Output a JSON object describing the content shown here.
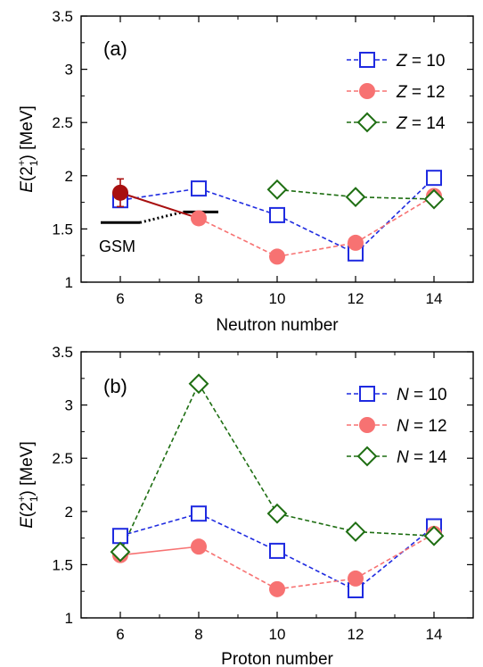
{
  "colors": {
    "blue": "#1f2be0",
    "red": "#f77272",
    "red_dark": "#c0291e",
    "dark_red": "#a80f0f",
    "green": "#1e6e12",
    "black": "#000000"
  },
  "chart_data": [
    {
      "type": "line",
      "panel_label": "(a)",
      "xlabel": "Neutron number",
      "ylabel_main": "E",
      "ylabel_rest": "(2",
      "ylabel_sup": "+",
      "ylabel_sub": "1",
      "ylabel_unit": ") [MeV]",
      "xticks": [
        "6",
        "8",
        "10",
        "12",
        "14"
      ],
      "yticks": [
        "1",
        "1.5",
        "2",
        "2.5",
        "3",
        "3.5"
      ],
      "xlim": [
        5,
        15
      ],
      "ylim": [
        1,
        3.5
      ],
      "legend_position": "top-right",
      "series": [
        {
          "name": "Z = 10",
          "legend_var": "Z",
          "legend_val": " = 10",
          "marker": "square",
          "color_key": "blue",
          "x": [
            6,
            8,
            10,
            12,
            14
          ],
          "y": [
            1.77,
            1.88,
            1.63,
            1.27,
            1.98
          ]
        },
        {
          "name": "Z = 12",
          "legend_var": "Z",
          "legend_val": " = 12",
          "marker": "circle",
          "color_key": "red",
          "x": [
            8,
            10,
            12,
            14
          ],
          "y": [
            1.6,
            1.24,
            1.37,
            1.81
          ]
        },
        {
          "name": "Z = 14",
          "legend_var": "Z",
          "legend_val": " = 14",
          "marker": "diamond",
          "color_key": "green",
          "x": [
            10,
            12,
            14
          ],
          "y": [
            1.87,
            1.8,
            1.78
          ]
        }
      ],
      "experiment": {
        "x": 6,
        "y": 1.84,
        "err": 0.13
      },
      "experiment_line": {
        "x": [
          6,
          8
        ],
        "y": [
          1.84,
          1.6
        ]
      },
      "gsm": {
        "label": "GSM",
        "level_left": {
          "x": [
            5.5,
            6.5
          ],
          "y": [
            1.56,
            1.56
          ]
        },
        "level_right": {
          "x": [
            7.6,
            8.5
          ],
          "y": [
            1.66,
            1.66
          ]
        },
        "dotted": {
          "x": [
            6.5,
            7.6
          ],
          "y": [
            1.56,
            1.66
          ]
        }
      }
    },
    {
      "type": "line",
      "panel_label": "(b)",
      "xlabel": "Proton number",
      "ylabel_main": "E",
      "ylabel_rest": "(2",
      "ylabel_sup": "+",
      "ylabel_sub": "1",
      "ylabel_unit": ") [MeV]",
      "xticks": [
        "6",
        "8",
        "10",
        "12",
        "14"
      ],
      "yticks": [
        "1",
        "1.5",
        "2",
        "2.5",
        "3",
        "3.5"
      ],
      "xlim": [
        5,
        15
      ],
      "ylim": [
        1,
        3.5
      ],
      "legend_position": "top-right",
      "series": [
        {
          "name": "N = 10",
          "legend_var": "N",
          "legend_val": " = 10",
          "marker": "square",
          "color_key": "blue",
          "x": [
            6,
            8,
            10,
            12,
            14
          ],
          "y": [
            1.77,
            1.98,
            1.63,
            1.26,
            1.86
          ]
        },
        {
          "name": "N = 12",
          "legend_var": "N",
          "legend_val": " = 12",
          "marker": "circle",
          "color_key": "red",
          "x": [
            6,
            8,
            10,
            12,
            14
          ],
          "y": [
            1.59,
            1.67,
            1.27,
            1.37,
            1.79
          ]
        },
        {
          "name": "N = 14",
          "legend_var": "N",
          "legend_val": " = 14",
          "marker": "diamond",
          "color_key": "green",
          "x": [
            6,
            8,
            10,
            12,
            14
          ],
          "y": [
            1.62,
            3.2,
            1.98,
            1.81,
            1.77
          ]
        }
      ],
      "solid_segment": {
        "series_index": 1,
        "from_index": 0,
        "to_index": 1
      }
    }
  ]
}
